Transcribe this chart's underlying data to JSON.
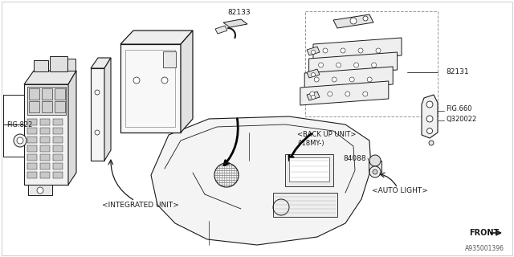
{
  "bg_color": "#ffffff",
  "diagram_id": "A935001396",
  "line_color": "#1a1a1a",
  "labels": {
    "fig822": "FIG.822",
    "fig660": "FIG.660",
    "integrated_unit": "<INTEGRATED UNIT>",
    "back_up_unit": "<BACK UP UNIT>",
    "back_up_unit2": "('18MY-)",
    "auto_light": "<AUTO LIGHT>",
    "front": "FRONT",
    "part_82133": "82133",
    "part_82131": "82131",
    "part_84088": "84088",
    "part_q320022": "Q320022"
  }
}
